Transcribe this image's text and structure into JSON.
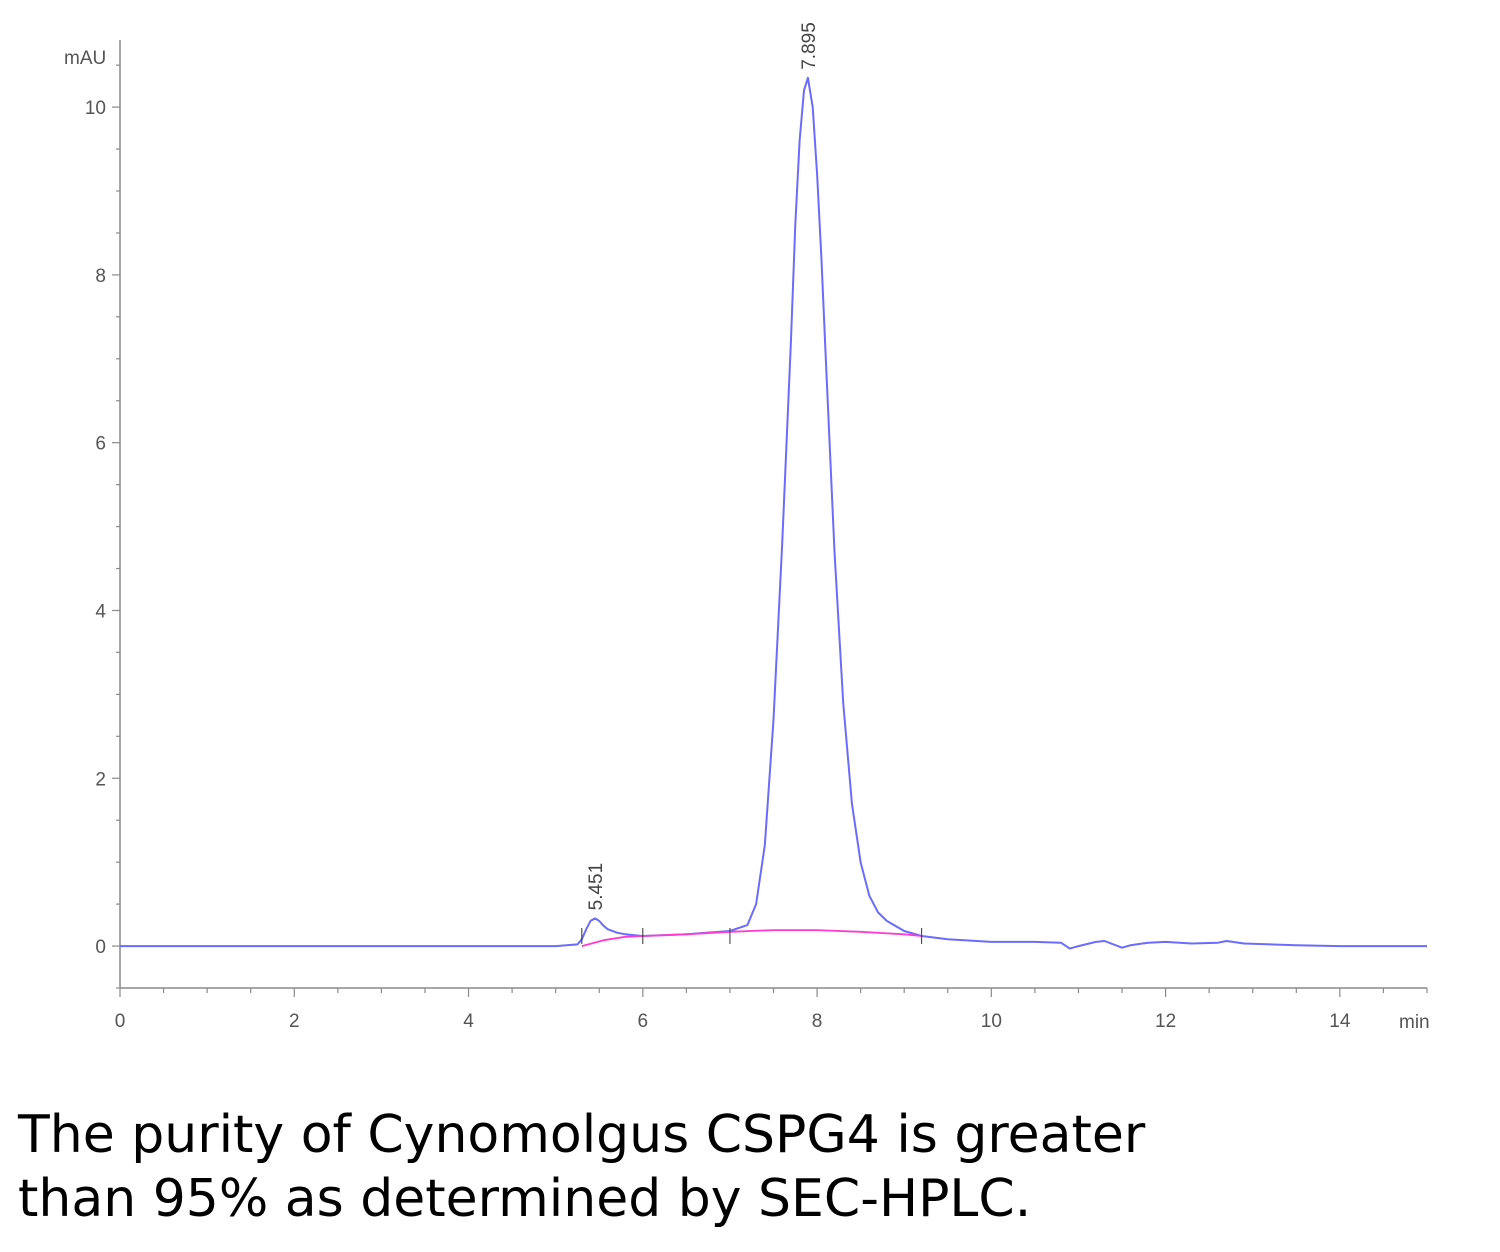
{
  "chart_data": {
    "type": "line",
    "y_unit": "mAU",
    "x_unit": "min",
    "xlim": [
      0,
      15
    ],
    "ylim": [
      -0.5,
      10.8
    ],
    "x_ticks": [
      0,
      2,
      4,
      6,
      8,
      10,
      12,
      14
    ],
    "y_ticks": [
      0,
      2,
      4,
      6,
      8,
      10
    ],
    "grid": false,
    "peaks": [
      {
        "label": "5.451",
        "x": 5.451,
        "y": 0.33
      },
      {
        "label": "7.895",
        "x": 7.895,
        "y": 10.35
      }
    ],
    "series": [
      {
        "color": "#6b6bff",
        "x": [
          0,
          1,
          2,
          3,
          4,
          5,
          5.25,
          5.3,
          5.35,
          5.4,
          5.451,
          5.5,
          5.55,
          5.6,
          5.7,
          5.8,
          6.0,
          6.5,
          7.0,
          7.2,
          7.3,
          7.4,
          7.5,
          7.6,
          7.7,
          7.75,
          7.8,
          7.85,
          7.895,
          7.95,
          8.0,
          8.05,
          8.1,
          8.2,
          8.3,
          8.4,
          8.5,
          8.6,
          8.7,
          8.8,
          9.0,
          9.2,
          9.5,
          10.0,
          10.5,
          10.8,
          10.9,
          11.0,
          11.2,
          11.3,
          11.5,
          11.6,
          11.8,
          12.0,
          12.3,
          12.6,
          12.7,
          12.9,
          13.5,
          14.0,
          15.0
        ],
        "y": [
          0,
          0,
          0,
          0,
          0,
          0,
          0.02,
          0.08,
          0.2,
          0.3,
          0.33,
          0.3,
          0.24,
          0.2,
          0.16,
          0.14,
          0.12,
          0.14,
          0.18,
          0.25,
          0.5,
          1.2,
          2.7,
          4.8,
          7.2,
          8.6,
          9.6,
          10.2,
          10.35,
          10.0,
          9.2,
          8.2,
          7.0,
          4.7,
          2.9,
          1.7,
          1.0,
          0.6,
          0.4,
          0.3,
          0.18,
          0.12,
          0.08,
          0.05,
          0.05,
          0.04,
          -0.03,
          0.0,
          0.05,
          0.06,
          -0.02,
          0.01,
          0.04,
          0.05,
          0.03,
          0.04,
          0.06,
          0.03,
          0.01,
          0.0,
          0.0
        ]
      },
      {
        "color": "#ff3ccf",
        "x": [
          5.3,
          5.55,
          5.8,
          6.0,
          6.5,
          7.0,
          7.5,
          8.0,
          8.5,
          9.0,
          9.2
        ],
        "y": [
          0.0,
          0.07,
          0.11,
          0.12,
          0.14,
          0.17,
          0.19,
          0.19,
          0.17,
          0.14,
          0.12
        ]
      }
    ]
  },
  "caption": {
    "line1": "The purity of Cynomolgus CSPG4 is greater",
    "line2": "than 95% as determined by SEC-HPLC."
  }
}
